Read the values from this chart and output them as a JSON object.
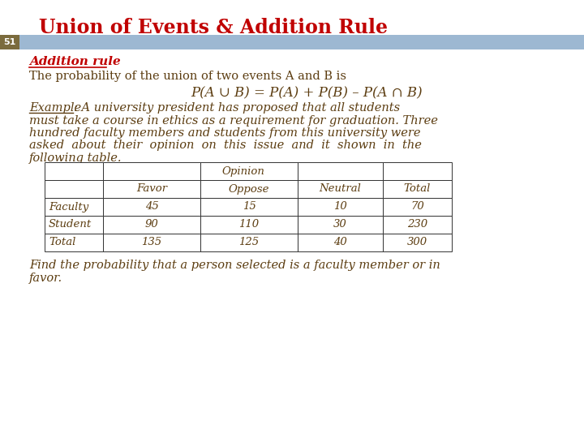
{
  "title": "Union of Events & Addition Rule",
  "slide_number": "51",
  "title_color": "#C00000",
  "header_bar_color": "#9DB8D2",
  "number_box_color": "#7B6B3D",
  "number_text_color": "#FFFFFF",
  "section_header": "Addition rule",
  "section_header_color": "#C00000",
  "body_text_color": "#5C3D11",
  "body_text1": "The probability of the union of two events A and B is",
  "formula": "P(A ∪ B) = P(A) + P(B) – P(A ∩ B)",
  "example_label": "Example",
  "footer_line1": "Find the probability that a person selected is a faculty member or in",
  "footer_line2": "favor.",
  "table_data": [
    [
      "Faculty",
      "45",
      "15",
      "10",
      "70"
    ],
    [
      "Student",
      "90",
      "110",
      "30",
      "230"
    ],
    [
      "Total",
      "135",
      "125",
      "40",
      "300"
    ]
  ],
  "background_color": "#FFFFFF",
  "title_fontsize": 17,
  "body_fontsize": 10.5,
  "formula_fontsize": 12,
  "table_fontsize": 9.5
}
